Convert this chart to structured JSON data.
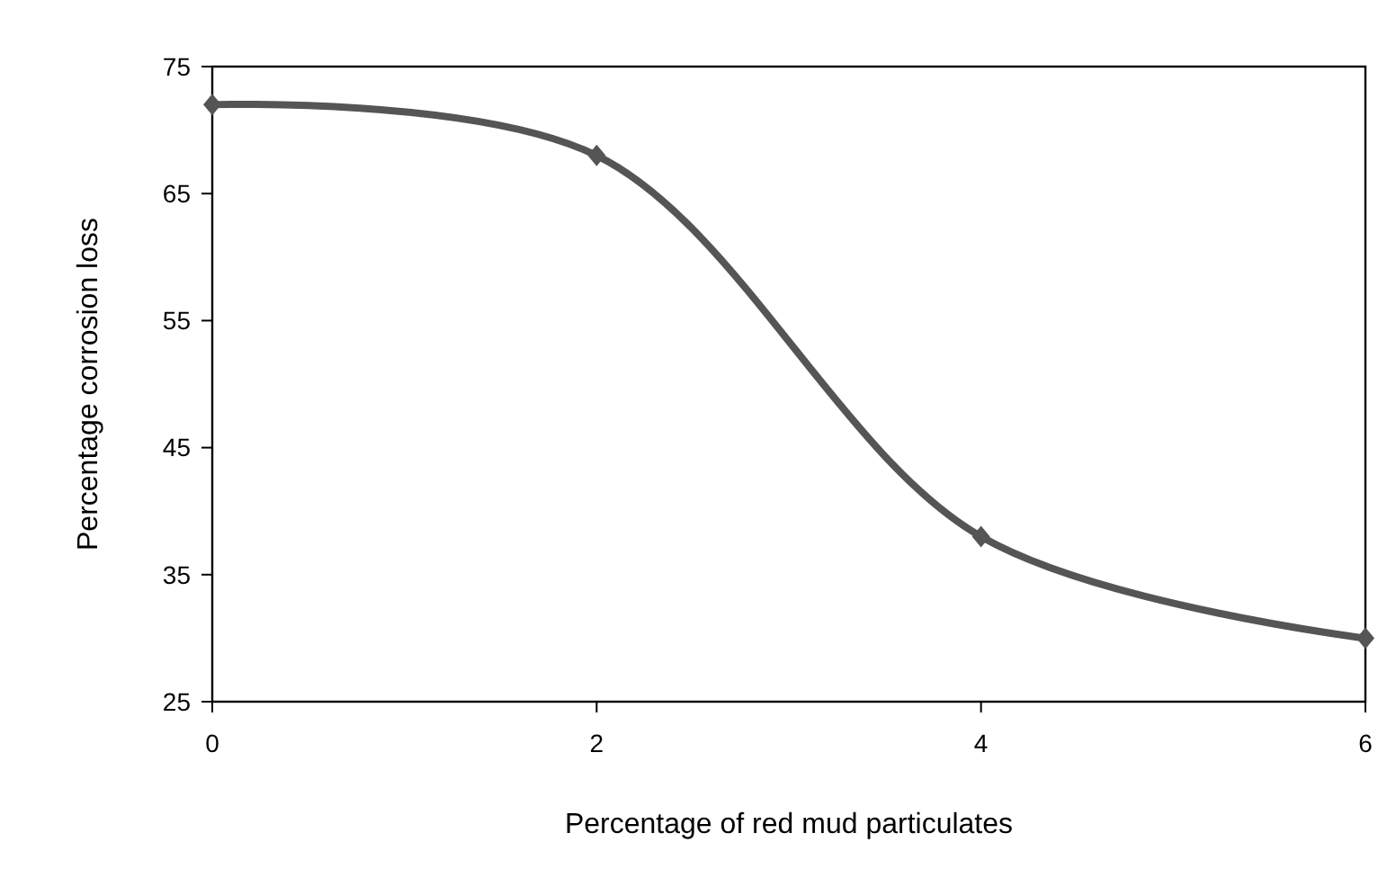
{
  "chart_data": {
    "type": "line",
    "xlabel": "Percentage of red mud particulates",
    "ylabel": "Percentage corrosion loss",
    "x": [
      0,
      2,
      4,
      6
    ],
    "series": [
      {
        "color": "#555555",
        "values": [
          72,
          68,
          38,
          30
        ]
      }
    ],
    "xlim": [
      0,
      6
    ],
    "xticks": [
      0,
      2,
      4,
      6
    ],
    "ylim": [
      25,
      75
    ],
    "yticks": [
      25,
      35,
      45,
      55,
      65,
      75
    ],
    "grid": false,
    "marker": "diamond",
    "line_style": "solid"
  }
}
